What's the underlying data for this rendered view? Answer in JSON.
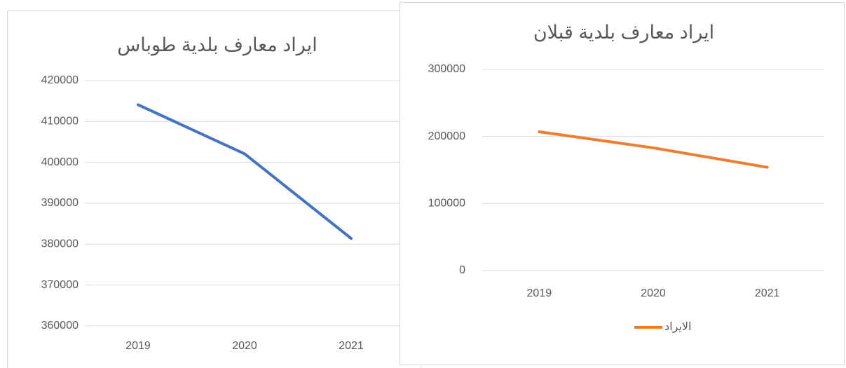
{
  "chart_data": [
    {
      "type": "line",
      "title": "ايراد معارف بلدية طوباس",
      "categories": [
        "2019",
        "2020",
        "2021"
      ],
      "series": [
        {
          "name": null,
          "color": "#4472c4",
          "values": [
            414100,
            402100,
            381400
          ]
        }
      ],
      "ylim": [
        360000,
        420000
      ],
      "yticks": [
        360000,
        370000,
        380000,
        390000,
        400000,
        410000,
        420000
      ],
      "grid": true
    },
    {
      "type": "line",
      "title": "ايراد معارف بلدية قبلان",
      "categories": [
        "2019",
        "2020",
        "2021"
      ],
      "series": [
        {
          "name": "الايراد",
          "color": "#ed7d31",
          "values": [
            207000,
            183000,
            154000
          ]
        }
      ],
      "ylim": [
        0,
        300000
      ],
      "yticks": [
        0,
        100000,
        200000,
        300000
      ],
      "grid": true,
      "legend": "bottom"
    }
  ]
}
